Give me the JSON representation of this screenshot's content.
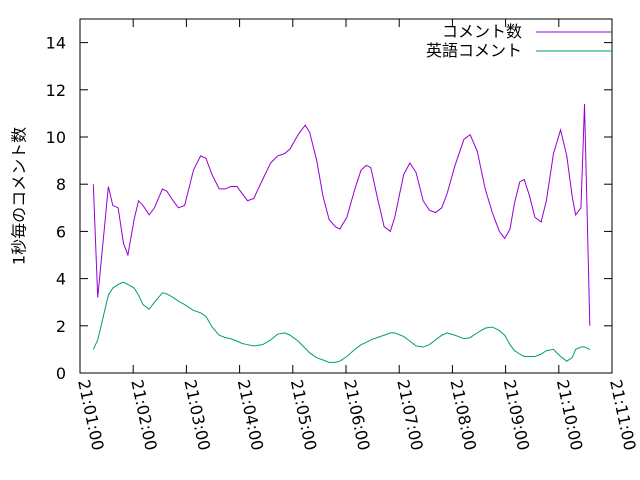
{
  "chart_data": {
    "type": "line",
    "y_label": "1秒毎のコメント数",
    "x": [
      "21:01:15",
      "21:01:20",
      "21:01:32",
      "21:01:37",
      "21:01:43",
      "21:01:49",
      "21:01:54",
      "21:02:01",
      "21:02:06",
      "21:02:11",
      "21:02:18",
      "21:02:24",
      "21:02:33",
      "21:02:38",
      "21:02:45",
      "21:02:51",
      "21:02:58",
      "21:03:08",
      "21:03:16",
      "21:03:22",
      "21:03:29",
      "21:03:37",
      "21:03:44",
      "21:03:50",
      "21:03:57",
      "21:04:03",
      "21:04:09",
      "21:04:16",
      "21:04:26",
      "21:04:35",
      "21:04:43",
      "21:04:51",
      "21:04:57",
      "21:05:06",
      "21:05:14",
      "21:05:19",
      "21:05:27",
      "21:05:34",
      "21:05:41",
      "21:05:48",
      "21:05:53",
      "21:06:01",
      "21:06:10",
      "21:06:17",
      "21:06:23",
      "21:06:28",
      "21:06:35",
      "21:06:43",
      "21:06:50",
      "21:06:55",
      "21:07:05",
      "21:07:12",
      "21:07:19",
      "21:07:27",
      "21:07:34",
      "21:07:41",
      "21:07:48",
      "21:07:54",
      "21:08:03",
      "21:08:13",
      "21:08:20",
      "21:08:28",
      "21:08:37",
      "21:08:45",
      "21:08:53",
      "21:08:59",
      "21:09:05",
      "21:09:10",
      "21:09:16",
      "21:09:21",
      "21:09:27",
      "21:09:33",
      "21:09:40",
      "21:09:46",
      "21:09:54",
      "21:10:02",
      "21:10:09",
      "21:10:15",
      "21:10:19",
      "21:10:25",
      "21:10:29",
      "21:10:35"
    ],
    "series": [
      {
        "name": "コメント数",
        "color": "#9400d3",
        "values": [
          8.0,
          3.2,
          7.9,
          7.1,
          7.0,
          5.5,
          5.0,
          6.5,
          7.3,
          7.1,
          6.7,
          7.0,
          7.8,
          7.7,
          7.3,
          7.0,
          7.1,
          8.6,
          9.2,
          9.1,
          8.4,
          7.8,
          7.8,
          7.9,
          7.9,
          7.6,
          7.3,
          7.4,
          8.2,
          8.9,
          9.2,
          9.3,
          9.5,
          10.1,
          10.5,
          10.2,
          9.0,
          7.5,
          6.5,
          6.2,
          6.1,
          6.6,
          7.8,
          8.6,
          8.8,
          8.7,
          7.5,
          6.2,
          6.0,
          6.6,
          8.4,
          8.9,
          8.5,
          7.3,
          6.9,
          6.8,
          7.0,
          7.6,
          8.8,
          9.9,
          10.1,
          9.4,
          7.8,
          6.8,
          6.0,
          5.7,
          6.1,
          7.2,
          8.1,
          8.2,
          7.5,
          6.6,
          6.4,
          7.3,
          9.3,
          10.3,
          9.2,
          7.5,
          6.7,
          7.0,
          11.4,
          2.0
        ]
      },
      {
        "name": "英語コメント",
        "color": "#009e73",
        "values": [
          1.0,
          1.4,
          3.3,
          3.6,
          3.75,
          3.85,
          3.75,
          3.6,
          3.3,
          2.9,
          2.7,
          3.0,
          3.4,
          3.35,
          3.2,
          3.05,
          2.9,
          2.65,
          2.55,
          2.4,
          1.95,
          1.6,
          1.5,
          1.45,
          1.35,
          1.25,
          1.2,
          1.15,
          1.2,
          1.4,
          1.65,
          1.7,
          1.6,
          1.35,
          1.05,
          0.85,
          0.65,
          0.55,
          0.45,
          0.45,
          0.5,
          0.7,
          1.0,
          1.2,
          1.3,
          1.4,
          1.5,
          1.6,
          1.7,
          1.7,
          1.55,
          1.35,
          1.15,
          1.1,
          1.2,
          1.4,
          1.6,
          1.7,
          1.6,
          1.45,
          1.5,
          1.7,
          1.9,
          1.95,
          1.8,
          1.6,
          1.2,
          0.95,
          0.8,
          0.7,
          0.7,
          0.7,
          0.8,
          0.95,
          1.0,
          0.7,
          0.5,
          0.65,
          1.0,
          1.1,
          1.1,
          1.0
        ]
      }
    ],
    "xlim": [
      "21:01:00",
      "21:11:00"
    ],
    "xticks": [
      "21:01:00",
      "21:02:00",
      "21:03:00",
      "21:04:00",
      "21:05:00",
      "21:06:00",
      "21:07:00",
      "21:08:00",
      "21:09:00",
      "21:10:00",
      "21:11:00"
    ],
    "ylim": [
      0,
      15
    ],
    "yticks": [
      0,
      2,
      4,
      6,
      8,
      10,
      12,
      14
    ],
    "legend": "top right"
  }
}
